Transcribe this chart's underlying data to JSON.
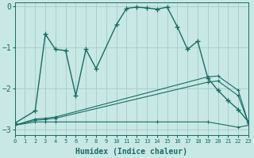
{
  "xlabel": "Humidex (Indice chaleur)",
  "bg_color": "#c8e8e5",
  "line_color": "#1a6b62",
  "grid_color": "#aad0cc",
  "xlim": [
    0,
    23
  ],
  "ylim": [
    -3.15,
    0.1
  ],
  "yticks": [
    0,
    -1,
    -2,
    -3
  ],
  "xticks": [
    0,
    1,
    2,
    3,
    4,
    5,
    6,
    7,
    8,
    9,
    10,
    11,
    12,
    13,
    14,
    15,
    16,
    17,
    18,
    19,
    20,
    21,
    22,
    23
  ],
  "curve_main_x": [
    0,
    2,
    3,
    4,
    5,
    6,
    7,
    8,
    10,
    11,
    12,
    13,
    14,
    15,
    16,
    17,
    18,
    19,
    20,
    21,
    22,
    23
  ],
  "curve_main_y": [
    -2.85,
    -2.55,
    -0.68,
    -1.05,
    -1.08,
    -2.18,
    -1.05,
    -1.52,
    -0.45,
    -0.05,
    -0.02,
    -0.04,
    -0.07,
    -0.02,
    -0.5,
    -1.05,
    -0.85,
    -1.75,
    -2.05,
    -2.3,
    -2.52,
    -2.82
  ],
  "curve_mid_x": [
    0,
    2,
    3,
    4,
    19,
    20,
    22,
    23
  ],
  "curve_mid_y": [
    -2.9,
    -2.75,
    -2.73,
    -2.7,
    -1.72,
    -1.7,
    -2.05,
    -2.85
  ],
  "curve_top_x": [
    0,
    2,
    3,
    4,
    19,
    20,
    22,
    23
  ],
  "curve_top_y": [
    -2.9,
    -2.78,
    -2.76,
    -2.73,
    -1.85,
    -1.82,
    -2.18,
    -2.85
  ],
  "curve_bot_x": [
    0,
    2,
    3,
    4,
    14,
    19,
    22,
    23
  ],
  "curve_bot_y": [
    -2.9,
    -2.82,
    -2.82,
    -2.82,
    -2.82,
    -2.82,
    -2.95,
    -2.9
  ]
}
